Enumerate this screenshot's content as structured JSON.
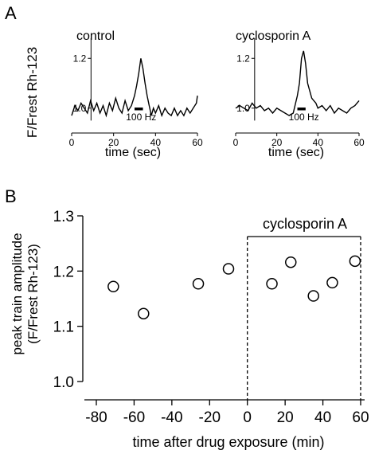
{
  "colors": {
    "ink": "#000000",
    "background": "#ffffff"
  },
  "chart_data": [
    {
      "panel_label": "A",
      "type": "line",
      "title": "control",
      "xlabel": "time (sec)",
      "ylabel": "F/Frest Rh-123",
      "xlim": [
        0,
        60
      ],
      "ylim": [
        0.9,
        1.3
      ],
      "xticks": [
        "0",
        "20",
        "40",
        "60"
      ],
      "yticks": [
        "1.0",
        "1.2"
      ],
      "stimulus": {
        "label": "100 Hz",
        "start": 30,
        "end": 34
      },
      "x": [
        0,
        1.5,
        3,
        4.5,
        6,
        7.5,
        9,
        10.5,
        12,
        13.5,
        15,
        16.5,
        18,
        19.5,
        21,
        22.5,
        24,
        25.5,
        27,
        28.5,
        30,
        31,
        32,
        33,
        34,
        35,
        36,
        37,
        38,
        39,
        40,
        41.5,
        43,
        44.5,
        46,
        47.5,
        49,
        50.5,
        52,
        53.5,
        55,
        56.5,
        58,
        59.5,
        60
      ],
      "y": [
        0.97,
        1.01,
        0.99,
        1.02,
        1.0,
        0.98,
        1.03,
        0.99,
        1.02,
        0.98,
        1.01,
        0.97,
        1.02,
        0.99,
        1.04,
        1.0,
        0.98,
        1.03,
        0.99,
        1.01,
        1.05,
        1.09,
        1.14,
        1.2,
        1.16,
        1.1,
        1.05,
        1.01,
        0.97,
        1.0,
        0.98,
        1.01,
        0.97,
        1.0,
        0.98,
        0.97,
        1.0,
        0.97,
        0.99,
        0.97,
        1.0,
        0.98,
        1.0,
        1.02,
        1.05
      ]
    },
    {
      "type": "line",
      "title": "cyclosporin A",
      "xlabel": "time (sec)",
      "xlim": [
        0,
        60
      ],
      "ylim": [
        0.9,
        1.3
      ],
      "xticks": [
        "0",
        "20",
        "40",
        "60"
      ],
      "yticks": [
        "1.2",
        "1.0"
      ],
      "stimulus": {
        "label": "100 Hz",
        "start": 30,
        "end": 34
      },
      "x": [
        0,
        2,
        4,
        6,
        8,
        10,
        12,
        14,
        16,
        18,
        20,
        22,
        24,
        26,
        28,
        30,
        31,
        32,
        33,
        34,
        35,
        36,
        37,
        38,
        39,
        40,
        42,
        44,
        46,
        48,
        50,
        52,
        54,
        56,
        58,
        60
      ],
      "y": [
        1.0,
        1.01,
        1.0,
        0.99,
        1.02,
        1.0,
        1.01,
        0.99,
        1.0,
        0.98,
        1.0,
        0.99,
        0.98,
        0.97,
        0.98,
        1.05,
        1.1,
        1.2,
        1.23,
        1.18,
        1.1,
        1.07,
        1.04,
        1.03,
        1.02,
        1.0,
        1.01,
        0.99,
        1.01,
        0.98,
        1.0,
        0.99,
        0.98,
        1.0,
        1.01,
        1.03
      ]
    },
    {
      "panel_label": "B",
      "type": "scatter",
      "xlabel": "time after drug exposure (min)",
      "ylabel": [
        "peak train amplitude",
        "(F/Frest Rh-123)"
      ],
      "xlim": [
        -80,
        60
      ],
      "ylim": [
        1.0,
        1.3
      ],
      "xticks": [
        "-80",
        "-60",
        "-40",
        "-20",
        "0",
        "20",
        "40",
        "60"
      ],
      "yticks": [
        "1.0",
        "1.1",
        "1.2",
        "1.3"
      ],
      "treatment": {
        "label": "cyclosporin A",
        "start": 0,
        "end": 60
      },
      "x": [
        -71,
        -55,
        -26,
        -10,
        13,
        23,
        35,
        45,
        57
      ],
      "y": [
        1.172,
        1.123,
        1.177,
        1.204,
        1.177,
        1.216,
        1.155,
        1.179,
        1.218
      ]
    }
  ]
}
